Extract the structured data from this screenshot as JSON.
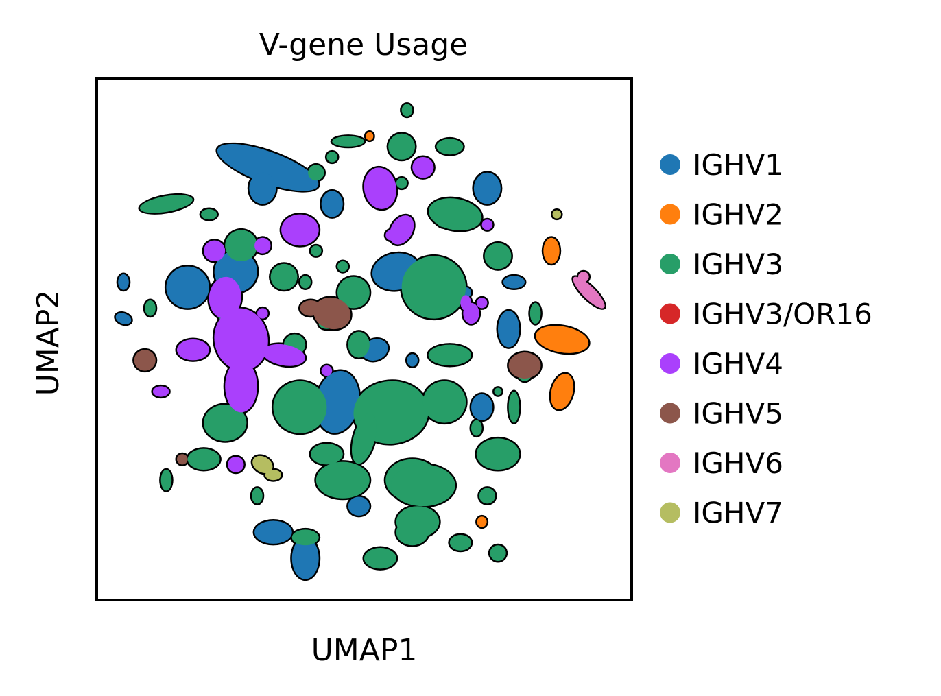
{
  "chart_data": {
    "type": "scatter",
    "title": "V-gene Usage",
    "xlabel": "UMAP1",
    "ylabel": "UMAP2",
    "xlim": [
      0,
      100
    ],
    "ylim": [
      0,
      100
    ],
    "ticks": "none",
    "grid": false,
    "legend_position": "right",
    "marker_style": "clustered points with black outline",
    "series": [
      {
        "name": "IGHV1",
        "color": "#1f77b4",
        "clusters": [
          [
            32,
            83,
            10,
            3,
            -20
          ],
          [
            31,
            79,
            2.5,
            3,
            0
          ],
          [
            17,
            60,
            4,
            4,
            0
          ],
          [
            26,
            63,
            4,
            4,
            10
          ],
          [
            56,
            63,
            4.5,
            3.5,
            10
          ],
          [
            45,
            38,
            4,
            6,
            -10
          ],
          [
            52,
            48,
            2.5,
            2,
            20
          ],
          [
            59,
            46,
            1,
            1.2,
            0
          ],
          [
            39,
            8,
            2.5,
            4,
            0
          ],
          [
            33,
            13,
            3.5,
            2.2,
            0
          ],
          [
            49,
            18,
            2,
            1.8,
            0
          ],
          [
            73,
            79,
            2.5,
            3,
            0
          ],
          [
            77,
            52,
            2,
            3.5,
            0
          ],
          [
            72,
            37,
            2,
            2.5,
            0
          ],
          [
            78,
            61,
            2,
            1.2,
            0
          ],
          [
            69,
            59,
            1,
            1,
            0
          ],
          [
            5,
            54,
            1.5,
            1,
            -20
          ],
          [
            44,
            76,
            2,
            2.5,
            0
          ],
          [
            5,
            61,
            1,
            1.5,
            0
          ]
        ]
      },
      {
        "name": "IGHV2",
        "color": "#ff7f0e",
        "clusters": [
          [
            87,
            50,
            5,
            2.5,
            -10
          ],
          [
            87,
            40,
            2,
            3.5,
            -15
          ],
          [
            85,
            67,
            1.5,
            2.5,
            0
          ],
          [
            51,
            89,
            0.7,
            0.8,
            0
          ],
          [
            72,
            15,
            0.9,
            1,
            0
          ]
        ]
      },
      {
        "name": "IGHV3",
        "color": "#279e68",
        "clusters": [
          [
            63,
            60,
            6,
            6,
            0
          ],
          [
            55,
            36,
            7,
            6,
            5
          ],
          [
            65,
            38,
            4,
            4,
            0
          ],
          [
            59,
            23,
            5,
            4,
            0
          ],
          [
            46,
            23,
            5,
            3.5,
            0
          ],
          [
            60,
            15,
            4,
            3,
            0
          ],
          [
            38,
            37,
            5,
            5,
            0
          ],
          [
            24,
            34,
            4,
            3.5,
            0
          ],
          [
            13,
            76,
            5,
            1.5,
            10
          ],
          [
            27,
            68,
            3,
            3,
            0
          ],
          [
            57,
            87,
            2.5,
            2.5,
            0
          ],
          [
            66,
            87,
            2.5,
            1.5,
            0
          ],
          [
            47,
            88,
            3,
            1,
            0
          ],
          [
            67,
            74,
            5,
            3,
            -10
          ],
          [
            75,
            66,
            2.5,
            2.5,
            0
          ],
          [
            20,
            27,
            3,
            2,
            0
          ],
          [
            13,
            23,
            1,
            2,
            0
          ],
          [
            30,
            20,
            1,
            1.5,
            0
          ],
          [
            48,
            59,
            3,
            3,
            0
          ],
          [
            49,
            49,
            2,
            2.5,
            0
          ],
          [
            66,
            47,
            4,
            2,
            0
          ],
          [
            82,
            55,
            1,
            2,
            0
          ],
          [
            75,
            28,
            4,
            3,
            0
          ],
          [
            73,
            20,
            1.5,
            1.5,
            0
          ],
          [
            41,
            82,
            1.5,
            1.5,
            0
          ],
          [
            61,
            22,
            6,
            4,
            0
          ],
          [
            35,
            62,
            2.5,
            2.5,
            0
          ],
          [
            39,
            61,
            1,
            1.2,
            0
          ],
          [
            58,
            94,
            1,
            1.2,
            0
          ],
          [
            44,
            85,
            1,
            1,
            0
          ],
          [
            21,
            74,
            1.5,
            1,
            0
          ],
          [
            10,
            56,
            1,
            1.5,
            0
          ],
          [
            24,
            55,
            1.5,
            1.5,
            0
          ],
          [
            71,
            33,
            1,
            1.5,
            0
          ],
          [
            78,
            37,
            1,
            3,
            0
          ],
          [
            75,
            40,
            0.7,
            0.7,
            0
          ],
          [
            41,
            67,
            1,
            1,
            0
          ],
          [
            57,
            80,
            1,
            1,
            0
          ],
          [
            39,
            12,
            2.5,
            1.5,
            0
          ],
          [
            53,
            8,
            3,
            2,
            0
          ],
          [
            59,
            13,
            3,
            2.5,
            0
          ],
          [
            50,
            31,
            2,
            5,
            -15
          ],
          [
            43,
            28,
            3,
            2,
            0
          ],
          [
            68,
            11,
            2,
            1.5,
            0
          ],
          [
            75,
            9,
            1.5,
            1.5,
            0
          ],
          [
            46,
            64,
            1,
            1,
            0
          ],
          [
            37,
            49,
            2,
            2,
            0
          ],
          [
            43,
            53,
            1.5,
            1,
            0
          ],
          [
            65,
            74,
            2,
            2.5,
            0
          ],
          [
            80,
            44,
            1.5,
            2,
            0
          ]
        ]
      },
      {
        "name": "IGHV3/OR16",
        "color": "#d62728",
        "clusters": []
      },
      {
        "name": "IGHV4",
        "color": "#aa40fc",
        "clusters": [
          [
            27,
            50,
            5,
            6,
            10
          ],
          [
            27,
            41,
            3,
            5,
            0
          ],
          [
            24,
            58,
            3,
            4,
            -5
          ],
          [
            18,
            48,
            3,
            2,
            0
          ],
          [
            35,
            47,
            4,
            2,
            -10
          ],
          [
            38,
            71,
            3.5,
            3,
            0
          ],
          [
            31,
            68,
            1.5,
            1.5,
            0
          ],
          [
            53,
            79,
            3,
            4,
            10
          ],
          [
            57,
            71,
            2,
            3,
            -30
          ],
          [
            61,
            83,
            2,
            2,
            0
          ],
          [
            70,
            55,
            1.5,
            2,
            0
          ],
          [
            69,
            57,
            1,
            1.5,
            0
          ],
          [
            72,
            57,
            1,
            1,
            0
          ],
          [
            12,
            40,
            1.5,
            1,
            0
          ],
          [
            26,
            26,
            1.5,
            1.5,
            0
          ],
          [
            22,
            67,
            2,
            2,
            0
          ],
          [
            43,
            44,
            1,
            1,
            0
          ],
          [
            31,
            55,
            1,
            1,
            0
          ],
          [
            55,
            70,
            1,
            1,
            0
          ],
          [
            73,
            72,
            1,
            1,
            0
          ]
        ]
      },
      {
        "name": "IGHV5",
        "color": "#8c564b",
        "clusters": [
          [
            44,
            55,
            3.5,
            3,
            -15
          ],
          [
            40,
            56,
            2,
            1.5,
            0
          ],
          [
            80,
            45,
            3,
            2.5,
            0
          ],
          [
            9,
            46,
            2,
            2,
            0
          ],
          [
            16,
            27,
            1,
            1,
            0
          ]
        ]
      },
      {
        "name": "IGHV6",
        "color": "#e377c2",
        "clusters": [
          [
            92,
            59,
            4,
            1.2,
            -45
          ],
          [
            91,
            62,
            1,
            1,
            0
          ]
        ]
      },
      {
        "name": "IGHV7",
        "color": "#b5bd61",
        "clusters": [
          [
            31,
            26,
            2,
            1.5,
            -30
          ],
          [
            33,
            24,
            1.5,
            1,
            0
          ],
          [
            86,
            74,
            0.8,
            0.8,
            0
          ]
        ]
      }
    ]
  }
}
